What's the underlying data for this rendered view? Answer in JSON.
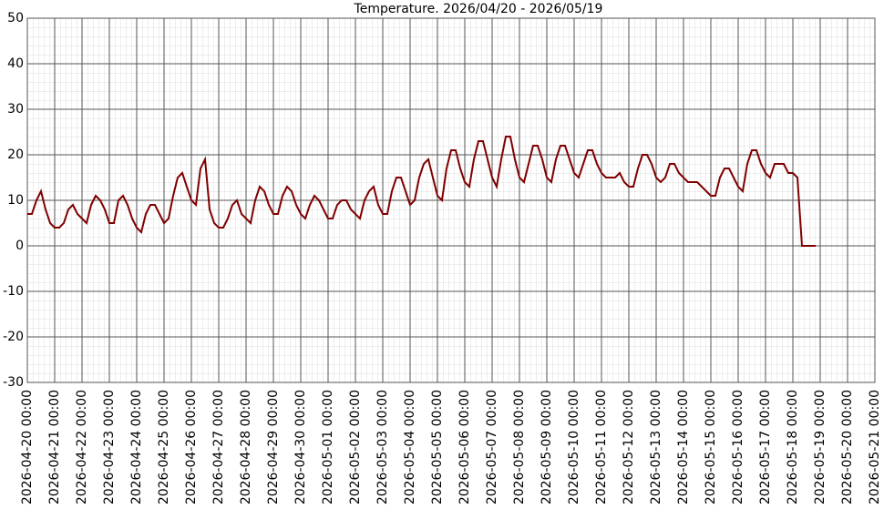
{
  "chart_data": {
    "type": "line",
    "title": "Temperature. 2026/04/20 - 2026/05/19",
    "x": [
      "2026-04-20 00:00",
      "2026-04-20 04:00",
      "2026-04-20 08:00",
      "2026-04-20 12:00",
      "2026-04-20 16:00",
      "2026-04-20 20:00",
      "2026-04-21 00:00",
      "2026-04-21 04:00",
      "2026-04-21 08:00",
      "2026-04-21 12:00",
      "2026-04-21 16:00",
      "2026-04-21 20:00",
      "2026-04-22 00:00",
      "2026-04-22 04:00",
      "2026-04-22 08:00",
      "2026-04-22 12:00",
      "2026-04-22 16:00",
      "2026-04-22 20:00",
      "2026-04-23 00:00",
      "2026-04-23 04:00",
      "2026-04-23 08:00",
      "2026-04-23 12:00",
      "2026-04-23 16:00",
      "2026-04-23 20:00",
      "2026-04-24 00:00",
      "2026-04-24 04:00",
      "2026-04-24 08:00",
      "2026-04-24 12:00",
      "2026-04-24 16:00",
      "2026-04-24 20:00",
      "2026-04-25 00:00",
      "2026-04-25 04:00",
      "2026-04-25 08:00",
      "2026-04-25 12:00",
      "2026-04-25 16:00",
      "2026-04-25 20:00",
      "2026-04-26 00:00",
      "2026-04-26 04:00",
      "2026-04-26 08:00",
      "2026-04-26 12:00",
      "2026-04-26 16:00",
      "2026-04-26 20:00",
      "2026-04-27 00:00",
      "2026-04-27 04:00",
      "2026-04-27 08:00",
      "2026-04-27 12:00",
      "2026-04-27 16:00",
      "2026-04-27 20:00",
      "2026-04-28 00:00",
      "2026-04-28 04:00",
      "2026-04-28 08:00",
      "2026-04-28 12:00",
      "2026-04-28 16:00",
      "2026-04-28 20:00",
      "2026-04-29 00:00",
      "2026-04-29 04:00",
      "2026-04-29 08:00",
      "2026-04-29 12:00",
      "2026-04-29 16:00",
      "2026-04-29 20:00",
      "2026-04-30 00:00",
      "2026-04-30 04:00",
      "2026-04-30 08:00",
      "2026-04-30 12:00",
      "2026-04-30 16:00",
      "2026-04-30 20:00",
      "2026-05-01 00:00",
      "2026-05-01 04:00",
      "2026-05-01 08:00",
      "2026-05-01 12:00",
      "2026-05-01 16:00",
      "2026-05-01 20:00",
      "2026-05-02 00:00",
      "2026-05-02 04:00",
      "2026-05-02 08:00",
      "2026-05-02 12:00",
      "2026-05-02 16:00",
      "2026-05-02 20:00",
      "2026-05-03 00:00",
      "2026-05-03 04:00",
      "2026-05-03 08:00",
      "2026-05-03 12:00",
      "2026-05-03 16:00",
      "2026-05-03 20:00",
      "2026-05-04 00:00",
      "2026-05-04 04:00",
      "2026-05-04 08:00",
      "2026-05-04 12:00",
      "2026-05-04 16:00",
      "2026-05-04 20:00",
      "2026-05-05 00:00",
      "2026-05-05 04:00",
      "2026-05-05 08:00",
      "2026-05-05 12:00",
      "2026-05-05 16:00",
      "2026-05-05 20:00",
      "2026-05-06 00:00",
      "2026-05-06 04:00",
      "2026-05-06 08:00",
      "2026-05-06 12:00",
      "2026-05-06 16:00",
      "2026-05-06 20:00",
      "2026-05-07 00:00",
      "2026-05-07 04:00",
      "2026-05-07 08:00",
      "2026-05-07 12:00",
      "2026-05-07 16:00",
      "2026-05-07 20:00",
      "2026-05-08 00:00",
      "2026-05-08 04:00",
      "2026-05-08 08:00",
      "2026-05-08 12:00",
      "2026-05-08 16:00",
      "2026-05-08 20:00",
      "2026-05-09 00:00",
      "2026-05-09 04:00",
      "2026-05-09 08:00",
      "2026-05-09 12:00",
      "2026-05-09 16:00",
      "2026-05-09 20:00",
      "2026-05-10 00:00",
      "2026-05-10 04:00",
      "2026-05-10 08:00",
      "2026-05-10 12:00",
      "2026-05-10 16:00",
      "2026-05-10 20:00",
      "2026-05-11 00:00",
      "2026-05-11 04:00",
      "2026-05-11 08:00",
      "2026-05-11 12:00",
      "2026-05-11 16:00",
      "2026-05-11 20:00",
      "2026-05-12 00:00",
      "2026-05-12 04:00",
      "2026-05-12 08:00",
      "2026-05-12 12:00",
      "2026-05-12 16:00",
      "2026-05-12 20:00",
      "2026-05-13 00:00",
      "2026-05-13 04:00",
      "2026-05-13 08:00",
      "2026-05-13 12:00",
      "2026-05-13 16:00",
      "2026-05-13 20:00",
      "2026-05-14 00:00",
      "2026-05-14 04:00",
      "2026-05-14 08:00",
      "2026-05-14 12:00",
      "2026-05-14 16:00",
      "2026-05-14 20:00",
      "2026-05-15 00:00",
      "2026-05-15 04:00",
      "2026-05-15 08:00",
      "2026-05-15 12:00",
      "2026-05-15 16:00",
      "2026-05-15 20:00",
      "2026-05-16 00:00",
      "2026-05-16 04:00",
      "2026-05-16 08:00",
      "2026-05-16 12:00",
      "2026-05-16 16:00",
      "2026-05-16 20:00",
      "2026-05-17 00:00",
      "2026-05-17 04:00",
      "2026-05-17 08:00",
      "2026-05-17 12:00",
      "2026-05-17 16:00",
      "2026-05-17 20:00",
      "2026-05-18 00:00",
      "2026-05-18 04:00",
      "2026-05-18 08:00",
      "2026-05-18 12:00",
      "2026-05-18 16:00",
      "2026-05-18 20:00"
    ],
    "series": [
      {
        "name": "Temperature",
        "color": "#800000",
        "values": [
          7,
          7,
          10,
          12,
          8,
          5,
          4,
          4,
          5,
          8,
          9,
          7,
          6,
          5,
          9,
          11,
          10,
          8,
          5,
          5,
          10,
          11,
          9,
          6,
          4,
          3,
          7,
          9,
          9,
          7,
          5,
          6,
          11,
          15,
          16,
          13,
          10,
          9,
          17,
          19,
          8,
          5,
          4,
          4,
          6,
          9,
          10,
          7,
          6,
          5,
          10,
          13,
          12,
          9,
          7,
          7,
          11,
          13,
          12,
          9,
          7,
          6,
          9,
          11,
          10,
          8,
          6,
          6,
          9,
          10,
          10,
          8,
          7,
          6,
          10,
          12,
          13,
          9,
          7,
          7,
          12,
          15,
          15,
          12,
          9,
          10,
          15,
          18,
          19,
          15,
          11,
          10,
          17,
          21,
          21,
          17,
          14,
          13,
          19,
          23,
          23,
          19,
          15,
          13,
          19,
          24,
          24,
          19,
          15,
          14,
          18,
          22,
          22,
          19,
          15,
          14,
          19,
          22,
          22,
          19,
          16,
          15,
          18,
          21,
          21,
          18,
          16,
          15,
          15,
          15,
          16,
          14,
          13,
          13,
          17,
          20,
          20,
          18,
          15,
          14,
          15,
          18,
          18,
          16,
          15,
          14,
          14,
          14,
          13,
          12,
          11,
          11,
          15,
          17,
          17,
          15,
          13,
          12,
          18,
          21,
          21,
          18,
          16,
          15,
          18,
          18,
          18,
          16,
          16,
          15,
          0,
          0,
          0,
          0
        ]
      }
    ],
    "xlim": [
      "2026-04-20 00:00",
      "2026-05-21 00:00"
    ],
    "xticks": [
      "2026-04-20 00:00",
      "2026-04-21 00:00",
      "2026-04-22 00:00",
      "2026-04-23 00:00",
      "2026-04-24 00:00",
      "2026-04-25 00:00",
      "2026-04-26 00:00",
      "2026-04-27 00:00",
      "2026-04-28 00:00",
      "2026-04-29 00:00",
      "2026-04-30 00:00",
      "2026-05-01 00:00",
      "2026-05-02 00:00",
      "2026-05-03 00:00",
      "2026-05-04 00:00",
      "2026-05-05 00:00",
      "2026-05-06 00:00",
      "2026-05-07 00:00",
      "2026-05-08 00:00",
      "2026-05-09 00:00",
      "2026-05-10 00:00",
      "2026-05-11 00:00",
      "2026-05-12 00:00",
      "2026-05-13 00:00",
      "2026-05-14 00:00",
      "2026-05-15 00:00",
      "2026-05-16 00:00",
      "2026-05-17 00:00",
      "2026-05-18 00:00",
      "2026-05-19 00:00",
      "2026-05-20 00:00",
      "2026-05-21 00:00"
    ],
    "ylim": [
      -30,
      50
    ],
    "yticks": [
      -30,
      -20,
      -10,
      0,
      10,
      20,
      30,
      40,
      50
    ],
    "grid": true
  }
}
